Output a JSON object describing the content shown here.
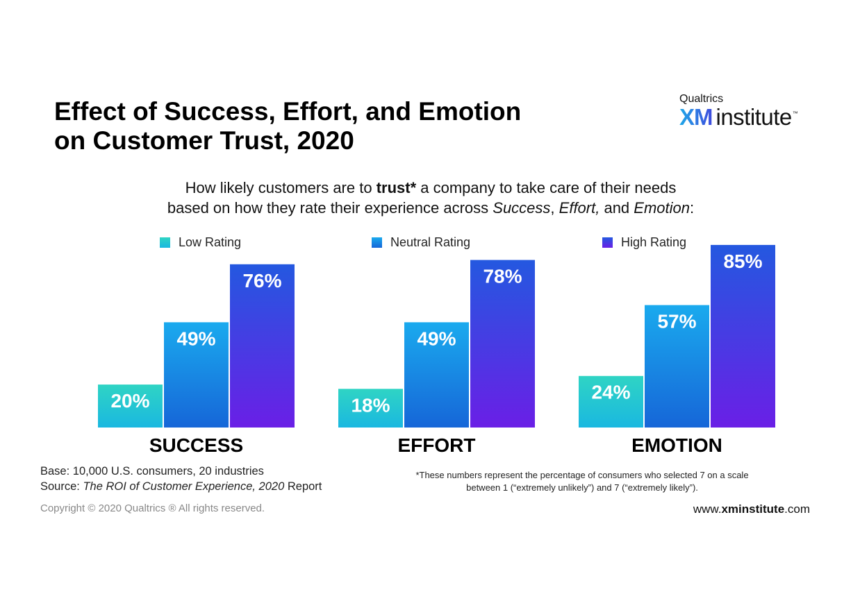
{
  "title": {
    "line1": "Effect of Success, Effort, and Emotion",
    "line2": "on Customer Trust, 2020"
  },
  "logo": {
    "top": "Qualtrics",
    "xm": "XM",
    "institute": "institute",
    "tm": "™"
  },
  "subtitle": {
    "line1_pre": "How likely customers are to ",
    "line1_bold": "trust*",
    "line1_post": " a company to take care of their needs",
    "line2_pre": "based on how they rate their experience across ",
    "line2_i1": "Success",
    "line2_sep1": ", ",
    "line2_i2": "Effort,",
    "line2_sep2": " and ",
    "line2_i3": "Emotion",
    "line2_end": ":"
  },
  "chart_data": {
    "type": "bar",
    "categories": [
      "SUCCESS",
      "EFFORT",
      "EMOTION"
    ],
    "series": [
      {
        "name": "Low Rating",
        "values": [
          20,
          18,
          24
        ]
      },
      {
        "name": "Neutral Rating",
        "values": [
          49,
          49,
          57
        ]
      },
      {
        "name": "High Rating",
        "values": [
          76,
          78,
          85
        ]
      }
    ],
    "value_labels": [
      [
        "20%",
        "18%",
        "24%"
      ],
      [
        "49%",
        "49%",
        "57%"
      ],
      [
        "76%",
        "78%",
        "85%"
      ]
    ],
    "ylim": [
      0,
      100
    ],
    "grid": false,
    "legend_position": "top",
    "colors": {
      "low": [
        "#2fd4c4",
        "#1ab8e0"
      ],
      "neutral": [
        "#1aaaee",
        "#1666d8"
      ],
      "high": [
        "#2458e0",
        "#6a1fe6"
      ]
    }
  },
  "footer": {
    "base": "Base: 10,000 U.S. consumers, 20 industries",
    "source_pre": "Source: ",
    "source_italic": "The ROI of Customer Experience, 2020",
    "source_post": " Report",
    "note_line1": "*These numbers represent the percentage of consumers who selected 7 on a scale",
    "note_line2": "between 1 (“extremely unlikely”) and 7 (“extremely likely”).",
    "copyright": "Copyright © 2020 Qualtrics ® All rights reserved.",
    "website_pre": "www.",
    "website_bold": "xminstitute",
    "website_post": ".com"
  }
}
